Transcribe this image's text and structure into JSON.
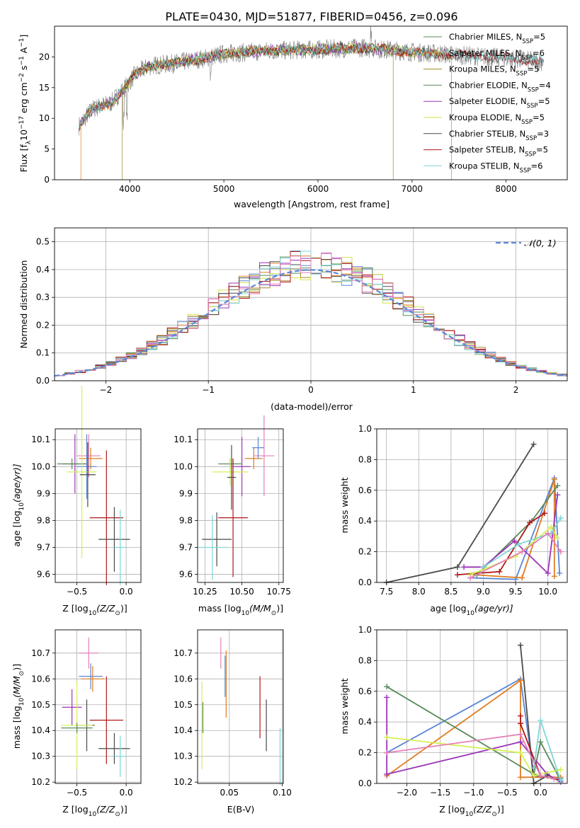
{
  "figure_title": "PLATE=0430, MJD=51877, FIBERID=0456, z=0.096",
  "colors": {
    "c1": "#5b86d6",
    "c2": "#e07c20",
    "c3": "#a08c2a",
    "c4": "#5a8a5a",
    "c5": "#9b34b8",
    "c6": "#d7e04a",
    "c7": "#4a4a4a",
    "c8": "#b01818",
    "c9": "#7fd6d6",
    "c10": "#e57fb8",
    "c11": "#d4f050",
    "grid": "#b0b0b0",
    "spec": "#7f7f7f"
  },
  "chart_data": [
    {
      "id": "spectrum",
      "type": "line",
      "xlabel": "wavelength [Angstrom, rest frame]",
      "ylabel": "Flux [f",
      "ylabel_parts": {
        "a": "Flux [f",
        "b": "λ",
        "c": "10",
        "d": "−17",
        "e": " erg cm",
        "f": "−2",
        "g": " s",
        "h": "−1",
        "i": " A",
        "j": "−1",
        "k": "]"
      },
      "xlim": [
        3200,
        8650
      ],
      "ylim": [
        0,
        25
      ],
      "xticks": [
        4000,
        5000,
        6000,
        7000,
        8000
      ],
      "yticks": [
        0,
        5,
        10,
        15,
        20
      ],
      "legend_position": "top-right",
      "continuum": [
        [
          3460,
          8.8
        ],
        [
          3600,
          11.5
        ],
        [
          3800,
          12.5
        ],
        [
          3950,
          15
        ],
        [
          4050,
          17
        ],
        [
          4200,
          18.5
        ],
        [
          4500,
          19
        ],
        [
          4800,
          19.8
        ],
        [
          5000,
          20.5
        ],
        [
          5500,
          21
        ],
        [
          6000,
          21.2
        ],
        [
          6500,
          21.5
        ],
        [
          7000,
          20.8
        ],
        [
          7500,
          20.3
        ],
        [
          8000,
          19.8
        ],
        [
          8400,
          19.2
        ]
      ],
      "models": [
        {
          "name": "Chabrier MILES, N",
          "sub": "SSP",
          "n": "=5",
          "color": "#5a8a5a",
          "range": [
            3460,
            7420
          ]
        },
        {
          "name": "Salpeter MILES, N",
          "sub": "SSP",
          "n": "=6",
          "color": "#e07c20",
          "range": [
            3480,
            7420
          ]
        },
        {
          "name": "Kroupa MILES, N",
          "sub": "SSP",
          "n": "=5",
          "color": "#a08c2a",
          "range": [
            3920,
            6800
          ]
        },
        {
          "name": "Chabrier ELODIE, N",
          "sub": "SSP",
          "n": "=4",
          "color": "#5a8a5a",
          "range": [
            3460,
            7420
          ]
        },
        {
          "name": "Salpeter ELODIE, N",
          "sub": "SSP",
          "n": "=5",
          "color": "#9b34b8",
          "range": [
            3460,
            7420
          ]
        },
        {
          "name": "Kroupa ELODIE, N",
          "sub": "SSP",
          "n": "=5",
          "color": "#d7e04a",
          "range": [
            3460,
            7420
          ]
        },
        {
          "name": "Chabrier STELIB, N",
          "sub": "SSP",
          "n": "=3",
          "color": "#4a4a4a",
          "range": [
            3460,
            8400
          ]
        },
        {
          "name": "Salpeter STELIB, N",
          "sub": "SSP",
          "n": "=5",
          "color": "#b01818",
          "range": [
            3460,
            8400
          ]
        },
        {
          "name": "Kroupa STELIB, N",
          "sub": "SSP",
          "n": "=6",
          "color": "#7fd6d6",
          "range": [
            3460,
            8400
          ]
        }
      ]
    },
    {
      "id": "residuals",
      "type": "step",
      "xlabel": "(data-model)/error",
      "ylabel": "Normed distribution",
      "xlim": [
        -2.5,
        2.5
      ],
      "ylim": [
        0,
        0.55
      ],
      "xticks": [
        -2,
        -1,
        0,
        1,
        2
      ],
      "yticks": [
        0.0,
        0.1,
        0.2,
        0.3,
        0.4,
        0.5
      ],
      "legend": "𝒩(0, 1)",
      "legend_position": "top-right",
      "series_colors": [
        "#5b86d6",
        "#e07c20",
        "#a08c2a",
        "#5a8a5a",
        "#9b34b8",
        "#d7e04a",
        "#4a4a4a",
        "#b01818",
        "#7fd6d6",
        "#e57fb8"
      ]
    },
    {
      "id": "age_vs_Z",
      "type": "errorbar",
      "xlabel": "Z [log",
      "xlabel_parts": {
        "a": "Z [log",
        "b": "10",
        "c": "(Z/Z",
        "d": "⊙",
        "e": ")]"
      },
      "ylabel_parts": {
        "a": "age  [log",
        "b": "10",
        "c": "(age/yr)]"
      },
      "xlim": [
        -0.72,
        0.15
      ],
      "ylim": [
        9.57,
        10.14
      ],
      "xticks": [
        -0.5,
        0.0
      ],
      "yticks": [
        9.6,
        9.7,
        9.8,
        9.9,
        10.0,
        10.1
      ],
      "points": [
        {
          "x": -0.52,
          "xe": 0.12,
          "y": 10.01,
          "ye": 0.11,
          "c": "#9b34b8"
        },
        {
          "x": -0.55,
          "xe": 0.15,
          "y": 10.01,
          "ye": 0.02,
          "c": "#5a8a5a"
        },
        {
          "x": -0.36,
          "xe": 0.12,
          "y": 10.03,
          "ye": 0.04,
          "c": "#e07c20"
        },
        {
          "x": -0.38,
          "xe": 0.12,
          "y": 10.04,
          "ye": 0.08,
          "c": "#e57fb8"
        },
        {
          "x": -0.4,
          "xe": 0.1,
          "y": 10.0,
          "ye": 0.12,
          "c": "#5b86d6"
        },
        {
          "x": -0.45,
          "xe": 0.15,
          "y": 9.98,
          "ye": 0.32,
          "c": "#d4f050"
        },
        {
          "x": -0.39,
          "xe": 0.08,
          "y": 9.97,
          "ye": 0.12,
          "c": "#4a4a4a"
        },
        {
          "x": -0.2,
          "xe": 0.17,
          "y": 9.81,
          "ye": 0.25,
          "c": "#b01818"
        },
        {
          "x": -0.12,
          "xe": 0.16,
          "y": 9.73,
          "ye": 0.12,
          "c": "#4a4a4a"
        },
        {
          "x": -0.06,
          "xe": 0.06,
          "y": 9.7,
          "ye": 0.14,
          "c": "#7fd6d6"
        }
      ]
    },
    {
      "id": "age_vs_mass",
      "type": "errorbar",
      "xlabel_parts": {
        "a": "mass [log",
        "b": "10",
        "c": "(M/M",
        "d": "⊙",
        "e": ")]"
      },
      "xlim": [
        10.2,
        10.78
      ],
      "ylim": [
        9.57,
        10.14
      ],
      "xticks": [
        10.25,
        10.5,
        10.75
      ],
      "yticks": [
        9.6,
        9.7,
        9.8,
        9.9,
        10.0,
        10.1
      ],
      "points": [
        {
          "x": 10.5,
          "xe": 0.06,
          "y": 10.0,
          "ye": 0.11,
          "c": "#9b34b8"
        },
        {
          "x": 10.42,
          "xe": 0.08,
          "y": 10.01,
          "ye": 0.02,
          "c": "#5a8a5a"
        },
        {
          "x": 10.58,
          "xe": 0.06,
          "y": 10.03,
          "ye": 0.04,
          "c": "#e07c20"
        },
        {
          "x": 10.65,
          "xe": 0.07,
          "y": 10.04,
          "ye": 0.15,
          "c": "#e57fb8"
        },
        {
          "x": 10.61,
          "xe": 0.04,
          "y": 10.07,
          "ye": 0.04,
          "c": "#5b86d6"
        },
        {
          "x": 10.42,
          "xe": 0.12,
          "y": 9.98,
          "ye": 0.05,
          "c": "#d4f050"
        },
        {
          "x": 10.43,
          "xe": 0.03,
          "y": 9.96,
          "ye": 0.12,
          "c": "#4a4a4a"
        },
        {
          "x": 10.44,
          "xe": 0.1,
          "y": 9.81,
          "ye": 0.22,
          "c": "#b01818"
        },
        {
          "x": 10.33,
          "xe": 0.1,
          "y": 9.73,
          "ye": 0.1,
          "c": "#4a4a4a"
        },
        {
          "x": 10.3,
          "xe": 0.1,
          "y": 9.7,
          "ye": 0.12,
          "c": "#7fd6d6"
        }
      ]
    },
    {
      "id": "weight_vs_age",
      "type": "line",
      "xlabel_parts": {
        "a": "age  [log",
        "b": "10",
        "c": "(age/yr)]"
      },
      "ylabel": "mass weight",
      "xlim": [
        7.35,
        10.3
      ],
      "ylim": [
        0,
        1.0
      ],
      "xticks": [
        7.5,
        8.0,
        8.5,
        9.0,
        9.5,
        10.0
      ],
      "yticks": [
        0.0,
        0.2,
        0.4,
        0.6,
        0.8,
        1.0
      ],
      "series": [
        {
          "c": "#4a4a4a",
          "x": [
            7.5,
            8.6,
            9.78
          ],
          "y": [
            0.0,
            0.1,
            0.9
          ]
        },
        {
          "c": "#5b86d6",
          "x": [
            8.8,
            9.5,
            10.1,
            10.18
          ],
          "y": [
            0.03,
            0.02,
            0.68,
            0.06
          ]
        },
        {
          "c": "#e07c20",
          "x": [
            8.85,
            9.6,
            10.1,
            10.1
          ],
          "y": [
            0.05,
            0.03,
            0.67,
            0.04
          ]
        },
        {
          "c": "#5a8a5a",
          "x": [
            8.9,
            9.75,
            10.15
          ],
          "y": [
            0.05,
            0.4,
            0.63
          ]
        },
        {
          "c": "#9b34b8",
          "x": [
            8.7,
            9.0,
            9.48,
            10.0,
            10.15
          ],
          "y": [
            0.1,
            0.1,
            0.27,
            0.06,
            0.57
          ]
        },
        {
          "c": "#b01818",
          "x": [
            8.6,
            9.25,
            9.72,
            9.95
          ],
          "y": [
            0.05,
            0.07,
            0.39,
            0.45
          ]
        },
        {
          "c": "#d4f050",
          "x": [
            8.8,
            9.5,
            10.05,
            10.15
          ],
          "y": [
            0.05,
            0.17,
            0.36,
            0.29
          ]
        },
        {
          "c": "#7fd6d6",
          "x": [
            9.0,
            9.55,
            10.05,
            10.2
          ],
          "y": [
            0.1,
            0.25,
            0.32,
            0.42
          ]
        },
        {
          "c": "#e57fb8",
          "x": [
            8.8,
            9.6,
            10.0,
            10.2
          ],
          "y": [
            0.03,
            0.2,
            0.32,
            0.2
          ]
        }
      ]
    },
    {
      "id": "mass_vs_Z",
      "type": "errorbar",
      "xlabel_parts": {
        "a": "Z [log",
        "b": "10",
        "c": "(Z/Z",
        "d": "⊙",
        "e": ")]"
      },
      "ylabel_parts": {
        "a": "mass [log",
        "b": "10",
        "c": "(M/M",
        "d": "⊙",
        "e": ")]"
      },
      "xlim": [
        -0.72,
        0.15
      ],
      "ylim": [
        10.195,
        10.79
      ],
      "xticks": [
        -0.5,
        0.0
      ],
      "yticks": [
        10.2,
        10.3,
        10.4,
        10.5,
        10.6,
        10.7
      ],
      "points": [
        {
          "x": -0.38,
          "xe": 0.1,
          "y": 10.7,
          "ye": 0.06,
          "c": "#e57fb8"
        },
        {
          "x": -0.36,
          "xe": 0.12,
          "y": 10.61,
          "ye": 0.05,
          "c": "#5b86d6"
        },
        {
          "x": -0.34,
          "xe": 0.12,
          "y": 10.6,
          "ye": 0.05,
          "c": "#e07c20"
        },
        {
          "x": -0.55,
          "xe": 0.1,
          "y": 10.49,
          "ye": 0.07,
          "c": "#9b34b8"
        },
        {
          "x": -0.4,
          "xe": 0.08,
          "y": 10.42,
          "ye": 0.1,
          "c": "#4a4a4a"
        },
        {
          "x": -0.5,
          "xe": 0.16,
          "y": 10.42,
          "ye": 0.17,
          "c": "#d4f050"
        },
        {
          "x": -0.5,
          "xe": 0.16,
          "y": 10.41,
          "ye": 0.02,
          "c": "#5a8a5a"
        },
        {
          "x": -0.2,
          "xe": 0.17,
          "y": 10.44,
          "ye": 0.17,
          "c": "#b01818"
        },
        {
          "x": -0.12,
          "xe": 0.16,
          "y": 10.33,
          "ye": 0.06,
          "c": "#4a4a4a"
        },
        {
          "x": -0.06,
          "xe": 0.06,
          "y": 10.3,
          "ye": 0.08,
          "c": "#7fd6d6"
        }
      ]
    },
    {
      "id": "mass_vs_EBV",
      "type": "errorbar",
      "xlabel": "E(B-V)",
      "xlim": [
        0.02,
        0.101
      ],
      "ylim": [
        10.195,
        10.79
      ],
      "xticks": [
        0.05,
        0.1
      ],
      "yticks": [
        10.2,
        10.3,
        10.4,
        10.5,
        10.6,
        10.7
      ],
      "points": [
        {
          "x": 0.024,
          "y": 10.42,
          "ye": 0.17,
          "c": "#d4f050"
        },
        {
          "x": 0.025,
          "y": 10.45,
          "ye": 0.06,
          "c": "#5a8a5a"
        },
        {
          "x": 0.042,
          "y": 10.7,
          "ye": 0.06,
          "c": "#e57fb8"
        },
        {
          "x": 0.046,
          "y": 10.61,
          "ye": 0.08,
          "c": "#5b86d6"
        },
        {
          "x": 0.047,
          "y": 10.58,
          "ye": 0.13,
          "c": "#e07c20"
        },
        {
          "x": 0.079,
          "y": 10.49,
          "ye": 0.12,
          "c": "#b01818"
        },
        {
          "x": 0.085,
          "y": 10.42,
          "ye": 0.1,
          "c": "#4a4a4a"
        },
        {
          "x": 0.098,
          "y": 10.3,
          "ye": 0.11,
          "c": "#7fd6d6"
        }
      ]
    },
    {
      "id": "weight_vs_Z",
      "type": "line",
      "xlabel_parts": {
        "a": "Z [log",
        "b": "10",
        "c": "(Z/Z",
        "d": "⊙",
        "e": ")]"
      },
      "ylabel": "mass weight",
      "xlim": [
        -2.45,
        0.4
      ],
      "ylim": [
        0,
        1.0
      ],
      "xticks": [
        -2.0,
        -1.5,
        -1.0,
        -0.5,
        0.0
      ],
      "yticks": [
        0.0,
        0.2,
        0.4,
        0.6,
        0.8,
        1.0
      ],
      "series": [
        {
          "c": "#5b86d6",
          "x": [
            -2.3,
            -0.3,
            -0.1,
            0.3
          ],
          "y": [
            0.2,
            0.68,
            0.05,
            0.03
          ]
        },
        {
          "c": "#e07c20",
          "x": [
            -2.3,
            -0.3,
            -0.3,
            0.3
          ],
          "y": [
            0.05,
            0.67,
            0.04,
            0.04
          ]
        },
        {
          "c": "#5a8a5a",
          "x": [
            -2.3,
            -0.1,
            0.0,
            0.3
          ],
          "y": [
            0.63,
            0.06,
            0.27,
            0.02
          ]
        },
        {
          "c": "#9b34b8",
          "x": [
            -2.3,
            -2.3,
            -0.3,
            0.1,
            0.3
          ],
          "y": [
            0.56,
            0.06,
            0.27,
            0.06,
            0.01
          ]
        },
        {
          "c": "#4a4a4a",
          "x": [
            -0.3,
            -0.1,
            0.1
          ],
          "y": [
            0.9,
            0.0,
            0.05
          ]
        },
        {
          "c": "#b01818",
          "x": [
            -0.3,
            -0.3,
            0.0,
            0.3
          ],
          "y": [
            0.44,
            0.39,
            0.05,
            0.02
          ]
        },
        {
          "c": "#d4f050",
          "x": [
            -2.3,
            -0.3,
            -0.1,
            0.3
          ],
          "y": [
            0.3,
            0.2,
            0.05,
            0.09
          ]
        },
        {
          "c": "#7fd6d6",
          "x": [
            -0.1,
            0.0,
            0.3
          ],
          "y": [
            0.1,
            0.41,
            0.02
          ]
        },
        {
          "c": "#e57fb8",
          "x": [
            -2.3,
            -0.3,
            0.0,
            0.2
          ],
          "y": [
            0.2,
            0.32,
            0.05,
            0.03
          ]
        }
      ]
    }
  ]
}
